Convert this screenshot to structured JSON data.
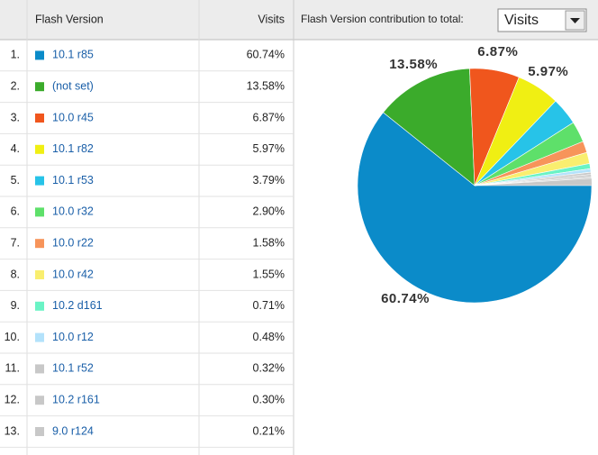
{
  "header": {
    "rank": "",
    "name": "Flash Version",
    "visits": "Visits",
    "control_label": "Flash Version contribution to total:",
    "control_value": "Visits"
  },
  "chart_data": {
    "type": "pie",
    "ranks": [
      "1.",
      "2.",
      "3.",
      "4.",
      "5.",
      "6.",
      "7.",
      "8.",
      "9.",
      "10.",
      "11.",
      "12.",
      "13."
    ],
    "categories": [
      "10.1 r85",
      "(not set)",
      "10.0 r45",
      "10.1 r82",
      "10.1 r53",
      "10.0 r32",
      "10.0 r22",
      "10.0 r42",
      "10.2 d161",
      "10.0 r12",
      "10.1 r52",
      "10.2 r161",
      "9.0 r124"
    ],
    "values": [
      60.74,
      13.58,
      6.87,
      5.97,
      3.79,
      2.9,
      1.58,
      1.55,
      0.71,
      0.48,
      0.32,
      0.3,
      0.21
    ],
    "value_labels": [
      "60.74%",
      "13.58%",
      "6.87%",
      "5.97%",
      "3.79%",
      "2.90%",
      "1.58%",
      "1.55%",
      "0.71%",
      "0.48%",
      "0.32%",
      "0.30%",
      "0.21%"
    ],
    "colors": [
      "#0b8bc9",
      "#3bab2b",
      "#f0561d",
      "#f0ef13",
      "#27c3e8",
      "#5ee06a",
      "#f7945a",
      "#f9ee6f",
      "#6af3c5",
      "#b3e2fb",
      "#c8c8c8",
      "#c8c8c8",
      "#c8c8c8"
    ]
  }
}
